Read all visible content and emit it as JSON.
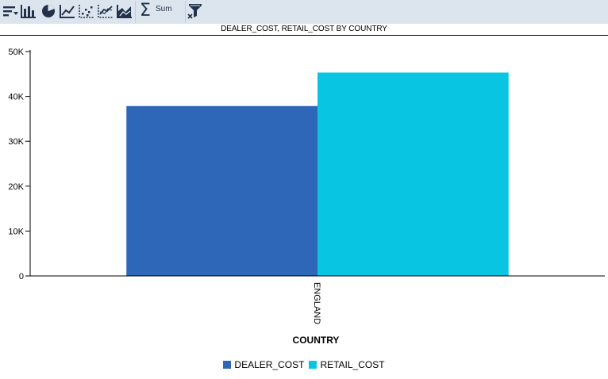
{
  "toolbar": {
    "buttons": [
      {
        "icon": "sort-icon"
      },
      {
        "icon": "bar-chart-icon"
      },
      {
        "icon": "pie-chart-icon"
      },
      {
        "icon": "line-chart-icon"
      },
      {
        "icon": "scatter-chart-icon"
      },
      {
        "icon": "multi-line-chart-icon"
      },
      {
        "icon": "area-chart-icon"
      }
    ],
    "sum_label": "Sum",
    "sum_glyph": "Σ",
    "filter_icon": "filter-icon",
    "colors": {
      "background": "#dce4ee",
      "icon": "#22324a"
    }
  },
  "chart_data": {
    "type": "bar",
    "title": "DEALER_COST, RETAIL_COST BY COUNTRY",
    "xlabel": "COUNTRY",
    "ylabel": "",
    "categories": [
      "ENGLAND"
    ],
    "series": [
      {
        "name": "DEALER_COST",
        "values": [
          37853
        ],
        "color": "#2e66b8"
      },
      {
        "name": "RETAIL_COST",
        "values": [
          45319
        ],
        "color": "#08c6e2"
      }
    ],
    "ylim": [
      0,
      50000
    ],
    "yticks": [
      {
        "value": 0,
        "label": "0"
      },
      {
        "value": 10000,
        "label": "10K"
      },
      {
        "value": 20000,
        "label": "20K"
      },
      {
        "value": 30000,
        "label": "30K"
      },
      {
        "value": 40000,
        "label": "40K"
      },
      {
        "value": 50000,
        "label": "50K"
      }
    ],
    "grid": false,
    "legend_position": "bottom"
  }
}
